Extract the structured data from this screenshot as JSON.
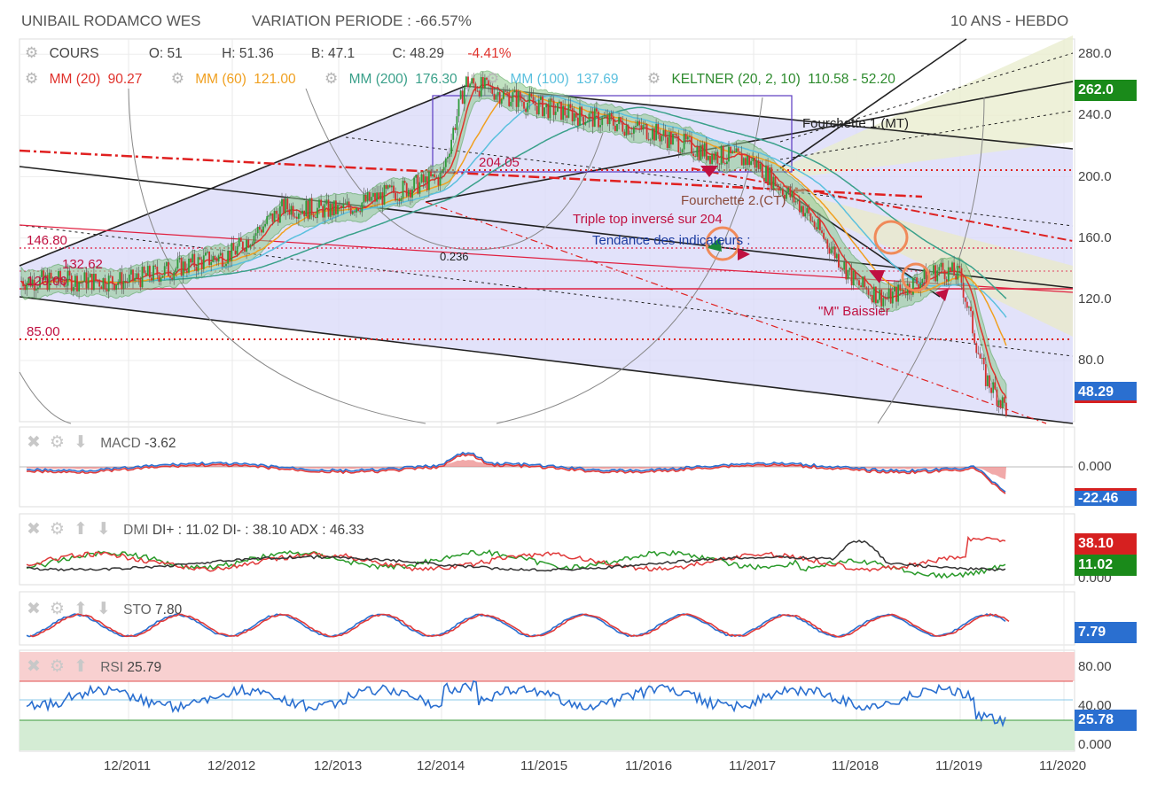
{
  "header": {
    "title": "UNIBAIL RODAMCO WES",
    "variation": "VARIATION PERIODE : -66.57%",
    "period": "10 ANS - HEBDO"
  },
  "legend": {
    "cours": "COURS",
    "open": "O: 51",
    "high": "H: 51.36",
    "low": "B: 47.1",
    "close": "C: 48.29",
    "change": "-4.41%",
    "mm20": "MM (20)",
    "mm20_val": "90.27",
    "mm60": "MM (60)",
    "mm60_val": "121.00",
    "mm200": "MM (200)",
    "mm200_val": "176.30",
    "mm100": "MM (100)",
    "mm100_val": "137.69",
    "keltner": "KELTNER (20, 2, 10)",
    "keltner_val": "110.58 - 52.20"
  },
  "annotations": {
    "fourchette1": "Fourchette 1.(MT)",
    "fourchette2": "Fourchette 2.(CT)",
    "triple": "Triple top inversé sur 204",
    "tendance": "Tendance des indicateurs :",
    "m_baissier": "\"M\" Baissier",
    "fib": "0.236",
    "lvl204": "204.05",
    "lvl146": "146.80",
    "lvl132": "132.62",
    "lvl120": "120.00",
    "lvl85": "85.00"
  },
  "price_badges": {
    "p262": "262.0",
    "p48": "48.29"
  },
  "indicators": {
    "macd": {
      "name": "MACD",
      "value": "-3.62",
      "badge": "-22.46",
      "tick": "0.000"
    },
    "dmi": {
      "name": "DMI",
      "value": "DI+ : 11.02 DI- : 38.10 ADX : 46.33",
      "badge_di_minus": "38.10",
      "badge_di_plus": "11.02",
      "tick": "0.000"
    },
    "sto": {
      "name": "STO",
      "value": "7.80",
      "badge": "7.79"
    },
    "rsi": {
      "name": "RSI",
      "value": "25.79",
      "badge": "25.78",
      "ticks": [
        "80.00",
        "40.00",
        "0.000"
      ]
    }
  },
  "icons": {
    "gear": "gear-icon",
    "close": "close-icon",
    "up": "arrow-up-icon",
    "down": "arrow-down-icon"
  },
  "colors": {
    "mm20": "#e0322c",
    "mm60": "#f0a020",
    "mm200": "#3aa08a",
    "mm100": "#5bc0de",
    "keltner": "#2e8b2e",
    "badge_green": "#1a8a1a",
    "badge_blue": "#2a6fd0",
    "badge_red": "#d62020"
  },
  "chart_data": {
    "type": "candlestick",
    "x_ticks": [
      "12/2011",
      "12/2012",
      "12/2013",
      "12/2014",
      "11/2015",
      "11/2016",
      "11/2017",
      "11/2018",
      "11/2019",
      "11/2020"
    ],
    "y_ticks": [
      280,
      240,
      200,
      160,
      120,
      80
    ],
    "ylim": [
      40,
      290
    ],
    "close_path": {
      "x": [
        "12/2010",
        "12/2011",
        "12/2012",
        "06/2013",
        "12/2013",
        "12/2014",
        "03/2015",
        "11/2015",
        "11/2016",
        "06/2017",
        "11/2017",
        "06/2018",
        "11/2018",
        "02/2019",
        "06/2019",
        "11/2019",
        "02/2020",
        "05/2020"
      ],
      "y": [
        132,
        132,
        150,
        180,
        178,
        200,
        262,
        245,
        230,
        215,
        210,
        180,
        130,
        120,
        140,
        135,
        70,
        48.29
      ]
    },
    "levels": [
      204.05,
      146.8,
      132.62,
      120,
      85
    ]
  }
}
